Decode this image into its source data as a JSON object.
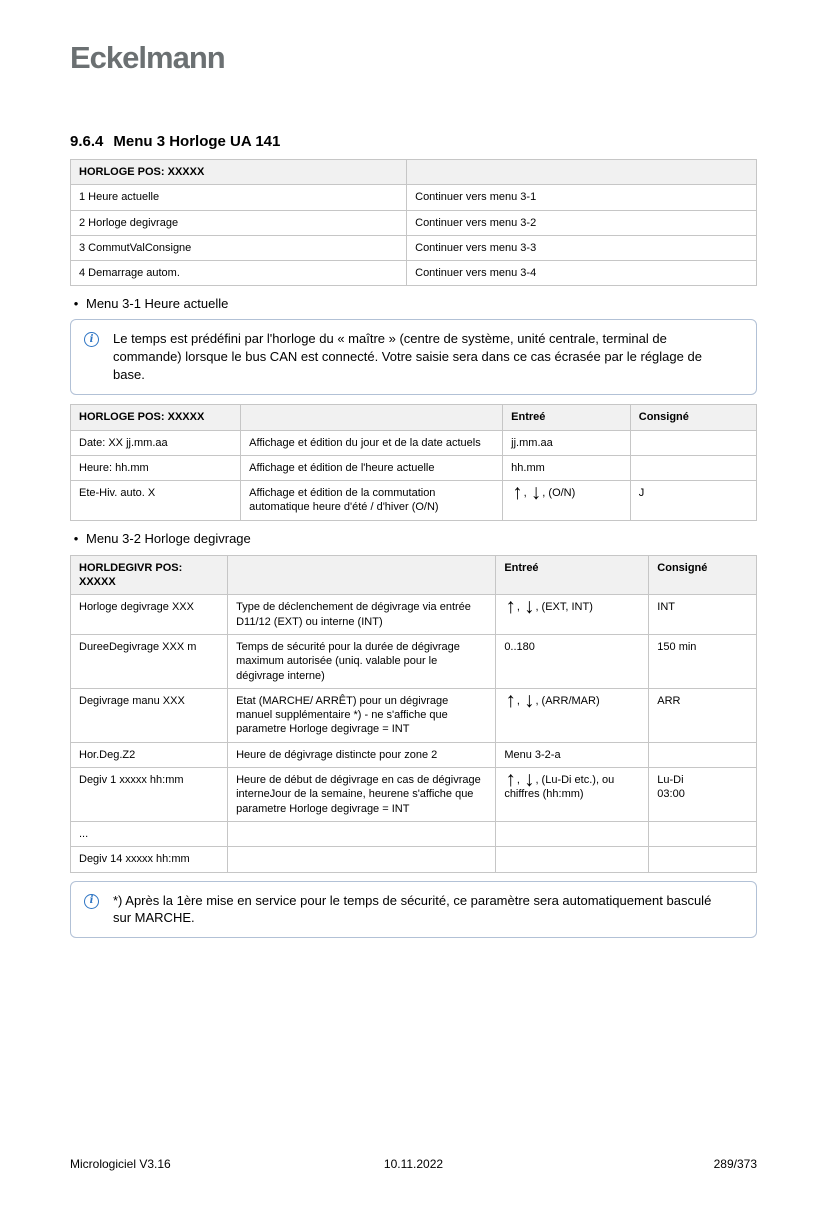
{
  "page": {
    "logo": "Eckelmann",
    "heading": {
      "number": "9.6.4",
      "title": "Menu 3 Horloge UA 141"
    },
    "footer": {
      "left": "Micrologiciel V3.16",
      "center": "10.11.2022",
      "right": "289/373"
    }
  },
  "colors": {
    "logo_gray": "#6b7072",
    "table_border": "#c6c6c6",
    "table_header_bg": "#f1f1f1",
    "info_box_border": "#b2c1d6",
    "info_icon_blue": "#2e75c4",
    "text": "#000000"
  },
  "bullets": [
    {
      "marker": "•",
      "label": "Menu 3-1 Heure actuelle"
    },
    {
      "marker": "•",
      "label": "Menu 3-2 Horloge degivrage"
    }
  ],
  "info_boxes": [
    {
      "icon": "info-icon",
      "icon_char": "i",
      "text": "Le temps est prédéfini par l'horloge du « maître » (centre de système, unité centrale, terminal de commande) lorsque le bus CAN est connecté. Votre saisie sera dans ce cas écrasée par le réglage de base."
    },
    {
      "icon": "info-icon",
      "icon_char": "i",
      "text": "*) Après la 1ère mise en service pour le temps de sécurité, ce paramètre sera automatiquement basculé sur MARCHE."
    }
  ],
  "tables": [
    {
      "name": "menu-3-overview",
      "col_widths": [
        "49%",
        "51%"
      ],
      "header": [
        "HORLOGE POS: XXXXX",
        ""
      ],
      "rows": [
        [
          "1 Heure actuelle",
          "Continuer vers menu 3-1"
        ],
        [
          "2 Horloge degivrage",
          "Continuer vers menu 3-2"
        ],
        [
          "3 CommutValConsigne",
          "Continuer vers menu 3-3"
        ],
        [
          "4 Demarrage autom.",
          "Continuer vers menu 3-4"
        ]
      ]
    },
    {
      "name": "menu-3-1-heure-actuelle",
      "col_widths": [
        "24.8%",
        "38.2%",
        "18.6%",
        "18.4%"
      ],
      "header": [
        "HORLOGE POS: XXXXX",
        "",
        "Entreé",
        "Consigné"
      ],
      "rows": [
        [
          "Date: XX jj.mm.aa",
          "Affichage et édition du jour et de la date actuels",
          "jj.mm.aa",
          ""
        ],
        [
          "Heure: hh.mm",
          "Affichage et édition de l'heure actuelle",
          "hh.mm",
          ""
        ],
        [
          "Ete-Hiv. auto. X",
          "Affichage et édition de la commutation automatique heure d'été / d'hiver (O/N)",
          "↑, ↓, (O/N)",
          "J"
        ]
      ]
    },
    {
      "name": "menu-3-2-horloge-degivrage",
      "col_widths": [
        "22.9%",
        "39.1%",
        "22.3%",
        "15.7%"
      ],
      "header": [
        "HORLDEGIVR POS: XXXXX",
        "",
        "Entreé",
        "Consigné"
      ],
      "rows": [
        [
          "Horloge degivrage XXX",
          "Type de déclenchement de dégivrage via entrée D11/12 (EXT) ou interne (INT)",
          "↑, ↓, (EXT, INT)",
          "INT"
        ],
        [
          "DureeDegivrage XXX m",
          "Temps de sécurité pour la durée de dégivrage maximum autorisée (uniq. valable pour le dégivrage interne)",
          "0..180",
          "150 min"
        ],
        [
          "Degivrage manu XXX",
          "Etat (MARCHE/ ARRÊT) pour un dégivrage manuel supplémentaire *) - ne s'affiche que parametre Horloge degivrage = INT",
          "↑, ↓, (ARR/MAR)",
          "ARR"
        ],
        [
          "Hor.Deg.Z2",
          "Heure de dégivrage distincte pour zone 2",
          "Menu 3-2-a",
          ""
        ],
        [
          "Degiv 1 xxxxx hh:mm",
          "Heure de début de dégivrage en cas de dégivrage interneJour de la semaine, heurene s'affiche que parametre Horloge degivrage = INT",
          "↑, ↓, (Lu-Di etc.), ou chiffres (hh:mm)",
          "Lu-Di\n03:00"
        ],
        [
          "...",
          "",
          "",
          ""
        ],
        [
          "Degiv 14 xxxxx hh:mm",
          "",
          "",
          ""
        ]
      ]
    }
  ]
}
